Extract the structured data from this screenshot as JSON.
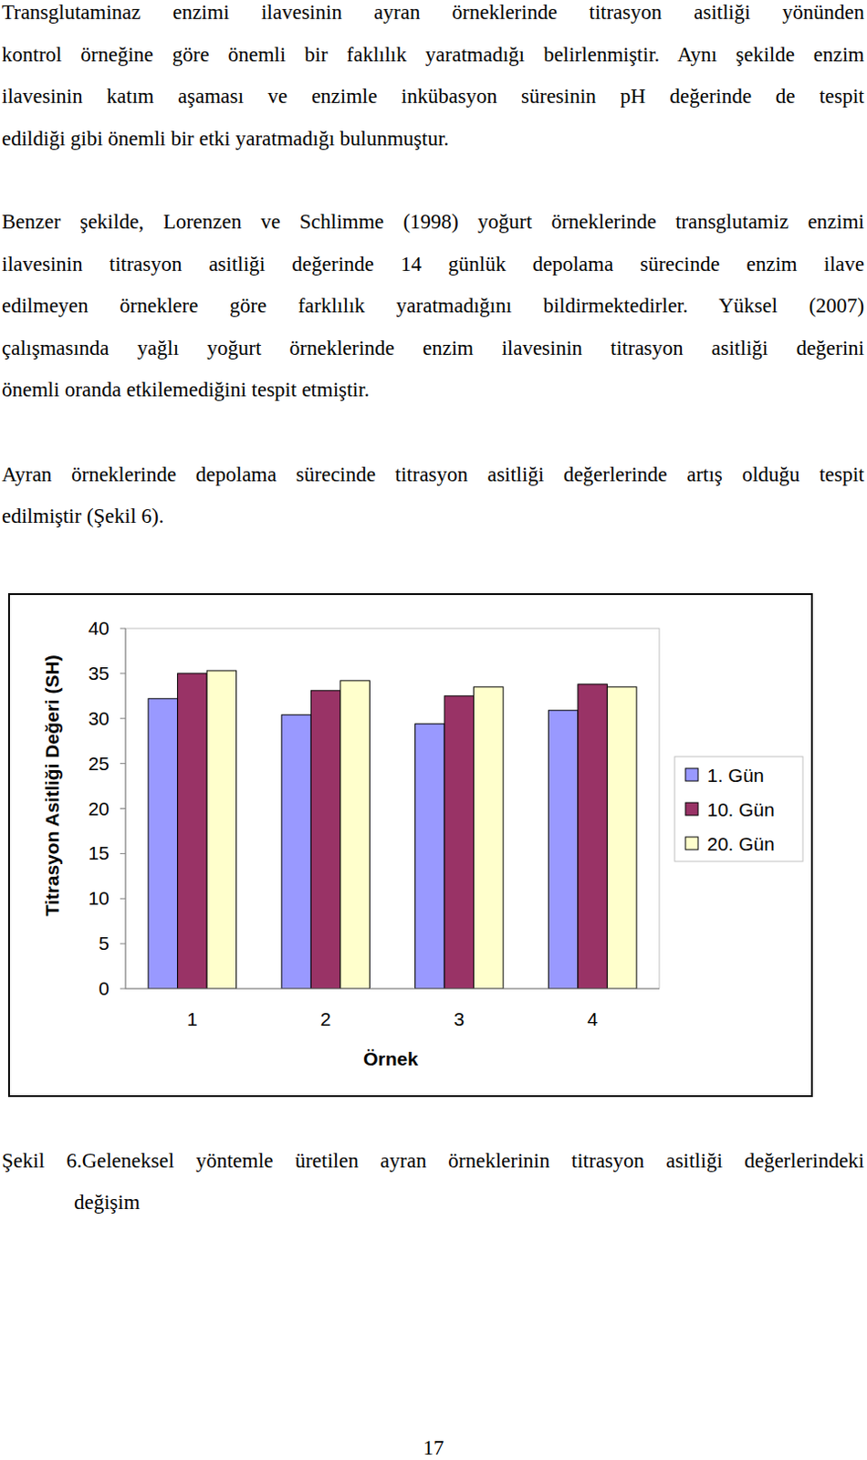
{
  "paragraphs": [
    [
      "Transglutaminaz enzimi ilavesinin ayran örneklerinde titrasyon asitliği yönünden",
      "kontrol örneğine göre önemli bir faklılık yaratmadığı belirlenmiştir. Aynı şekilde enzim",
      "ilavesinin katım aşaması ve enzimle inkübasyon süresinin    pH değerinde de tespit",
      "edildiği  gibi önemli bir etki yaratmadığı bulunmuştur."
    ],
    [
      "Benzer şekilde, Lorenzen ve Schlimme (1998) yoğurt örneklerinde transglutamiz enzimi",
      "ilavesinin  titrasyon asitliği değerinde 14 günlük depolama sürecinde  enzim ilave",
      "edilmeyen örneklere göre farklılık yaratmadığını bildirmektedirler. Yüksel (2007)",
      "çalışmasında yağlı yoğurt örneklerinde enzim ilavesinin titrasyon asitliği değerini",
      "önemli oranda etkilemediğini tespit etmiştir."
    ],
    [
      "Ayran örneklerinde depolama sürecinde titrasyon asitliği değerlerinde artış olduğu tespit",
      "edilmiştir (Şekil 6)."
    ]
  ],
  "chart_data": {
    "type": "bar",
    "x_label": "Örnek",
    "y_label": "Titrasyon Asitliği Değeri (SH)",
    "categories": [
      "1",
      "2",
      "3",
      "4"
    ],
    "series": [
      {
        "name": "1. Gün",
        "color": "#9999ff",
        "values": [
          32.2,
          30.4,
          29.4,
          30.9
        ]
      },
      {
        "name": "10. Gün",
        "color": "#993366",
        "values": [
          35.0,
          33.1,
          32.5,
          33.8
        ]
      },
      {
        "name": "20. Gün",
        "color": "#ffffcc",
        "values": [
          35.3,
          34.2,
          33.5,
          33.5
        ]
      }
    ],
    "ylim": [
      0,
      40
    ],
    "yticks": [
      0,
      5,
      10,
      15,
      20,
      25,
      30,
      35,
      40
    ],
    "grid": false,
    "legend": "right"
  },
  "caption": [
    "Şekil 6.Geleneksel yöntemle üretilen ayran örneklerinin titrasyon asitliği  değerlerindeki",
    "değişim"
  ],
  "page_number": 17
}
